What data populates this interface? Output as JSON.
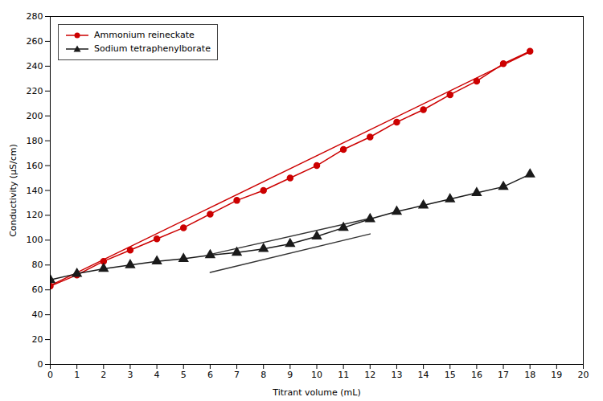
{
  "chart_data": {
    "type": "line",
    "xlabel": "Titrant volume (mL)",
    "ylabel": "Conductivity (μS/cm)",
    "x": [
      0,
      1,
      2,
      3,
      4,
      5,
      6,
      7,
      8,
      9,
      10,
      11,
      12,
      13,
      14,
      15,
      16,
      17,
      18
    ],
    "xlim": [
      0,
      20
    ],
    "ylim": [
      0,
      280
    ],
    "xticks": [
      0,
      1,
      2,
      3,
      4,
      5,
      6,
      7,
      8,
      9,
      10,
      11,
      12,
      13,
      14,
      15,
      16,
      17,
      18,
      19,
      20
    ],
    "yticks": [
      0,
      20,
      40,
      60,
      80,
      100,
      120,
      140,
      160,
      180,
      200,
      220,
      240,
      260,
      280
    ],
    "grid": false,
    "legend": "upper left",
    "series": [
      {
        "x": [
          0,
          18
        ],
        "values": [
          63.5,
          251.5
        ],
        "color": "#cc0000",
        "line_style": "solid"
      },
      {
        "x": [
          6.0,
          12.0
        ],
        "values": [
          74.0,
          105.0
        ],
        "color": "#333333",
        "line_style": "solid"
      },
      {
        "x": [
          6.0,
          12.0
        ],
        "values": [
          88.5,
          117.5
        ],
        "color": "#333333",
        "line_style": "solid"
      },
      {
        "name": "Ammonium reineckate",
        "color": "#cc0000",
        "marker": "circle",
        "line_style": "solid",
        "values": [
          63,
          72,
          83,
          92,
          101,
          110,
          121,
          132,
          140,
          150,
          160,
          173,
          183,
          195,
          205,
          217,
          228,
          242,
          252
        ]
      },
      {
        "name": "Sodium tetraphenylborate",
        "color": "#1a1a1a",
        "marker": "triangle",
        "line_style": "solid",
        "values": [
          68,
          73,
          77,
          80,
          83,
          85,
          88,
          90,
          93,
          97,
          103,
          110,
          117,
          123,
          128,
          133,
          138,
          143,
          153
        ]
      }
    ]
  }
}
